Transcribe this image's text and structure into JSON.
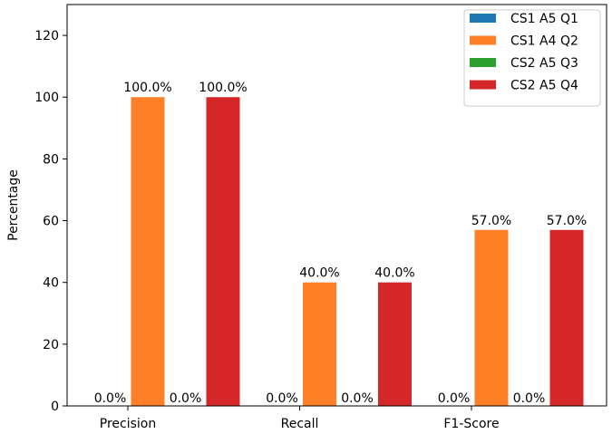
{
  "chart_data": {
    "type": "bar",
    "categories": [
      "Precision",
      "Recall",
      "F1-Score"
    ],
    "series": [
      {
        "name": "CS1 A5 Q1",
        "color": "#1f77b4",
        "values": [
          0,
          0,
          0
        ],
        "labels": [
          "0.0%",
          "0.0%",
          "0.0%"
        ]
      },
      {
        "name": "CS1 A4 Q2",
        "color": "#ff7f27",
        "values": [
          100,
          40,
          57
        ],
        "labels": [
          "100.0%",
          "40.0%",
          "57.0%"
        ]
      },
      {
        "name": "CS2 A5 Q3",
        "color": "#2ca02c",
        "values": [
          0,
          0,
          0
        ],
        "labels": [
          "0.0%",
          "0.0%",
          "0.0%"
        ]
      },
      {
        "name": "CS2 A5 Q4",
        "color": "#d62728",
        "values": [
          100,
          40,
          57
        ],
        "labels": [
          "100.0%",
          "40.0%",
          "57.0%"
        ]
      }
    ],
    "ylabel": "Percentage",
    "xlabel": "",
    "ylim": [
      0,
      130
    ],
    "yticks": [
      0,
      20,
      40,
      60,
      80,
      100,
      120
    ],
    "legend_position": "top-right",
    "grid": false
  }
}
